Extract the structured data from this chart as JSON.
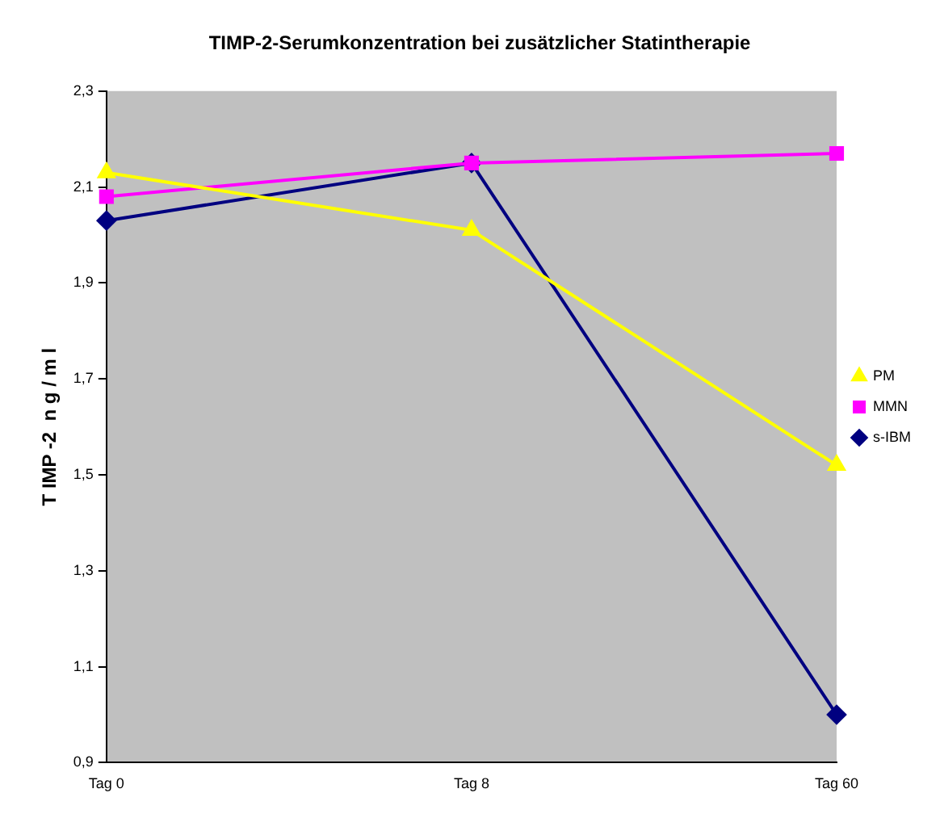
{
  "chart_data": {
    "type": "line",
    "title": "TIMP-2-Serumkonzentration bei zusätzlicher Statintherapie",
    "ylabel": "T IMP -2  n g / m l",
    "categories": [
      "Tag 0",
      "Tag 8",
      "Tag 60"
    ],
    "series": [
      {
        "name": "s-IBM",
        "color": "#000080",
        "marker": "diamond",
        "values": [
          2.03,
          2.15,
          1.0
        ]
      },
      {
        "name": "MMN",
        "color": "#ff00ff",
        "marker": "square",
        "values": [
          2.08,
          2.15,
          2.17
        ]
      },
      {
        "name": "PM",
        "color": "#ffff00",
        "marker": "triangle",
        "values": [
          2.13,
          2.01,
          1.52
        ]
      }
    ],
    "ylim": [
      0.9,
      2.3
    ],
    "yticks": [
      {
        "value": 0.9,
        "label": "0,9"
      },
      {
        "value": 1.1,
        "label": "1,1"
      },
      {
        "value": 1.3,
        "label": "1,3"
      },
      {
        "value": 1.5,
        "label": "1,5"
      },
      {
        "value": 1.7,
        "label": "1,7"
      },
      {
        "value": 1.9,
        "label": "1,9"
      },
      {
        "value": 2.1,
        "label": "2,1"
      },
      {
        "value": 2.3,
        "label": "2,3"
      }
    ],
    "grid": false,
    "legend": "right",
    "line_style": "solid"
  }
}
